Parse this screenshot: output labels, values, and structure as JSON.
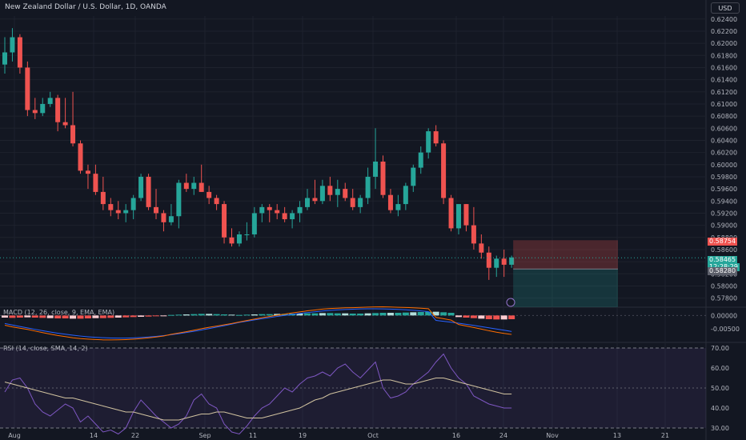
{
  "header": {
    "title": "New Zealand Dollar / U.S. Dollar, 1D, OANDA",
    "currency_button": "USD"
  },
  "indicators": {
    "macd_label": "MACD (12, 26, close, 9, EMA, EMA)",
    "rsi_label": "RSI (14, close, SMA, 14, 2)"
  },
  "price_labels": {
    "stop": "0.58754",
    "last": "0.58465",
    "countdown": "12:28:29",
    "target": "0.58280",
    "macd_zero": "0.00000",
    "macd_low": "-0.00500"
  },
  "colors": {
    "up": "#26a69a",
    "down": "#ef5350",
    "bg": "#131722",
    "grid": "#1e222d",
    "text": "#b2b5be",
    "rsi_line": "#7e57c2",
    "rsi_ma": "#d1c3a0"
  },
  "chart_data": {
    "type": "candlestick",
    "title": "New Zealand Dollar / U.S. Dollar, 1D, OANDA",
    "price_axis": {
      "ticks": [
        "0.62400",
        "0.62200",
        "0.62000",
        "0.61800",
        "0.61600",
        "0.61400",
        "0.61200",
        "0.61000",
        "0.60800",
        "0.60600",
        "0.60400",
        "0.60200",
        "0.60000",
        "0.59800",
        "0.59600",
        "0.59400",
        "0.59200",
        "0.59000",
        "0.58800",
        "0.58600",
        "0.58400",
        "0.58200",
        "0.58000",
        "0.57800"
      ],
      "range": [
        0.5765,
        0.6245
      ]
    },
    "time_axis": [
      "Aug",
      "14",
      "22",
      "Sep",
      "11",
      "19",
      "Oct",
      "16",
      "24",
      "Nov",
      "13",
      "21"
    ],
    "candles": [
      [
        0.6165,
        0.621,
        0.615,
        0.6185
      ],
      [
        0.6185,
        0.6225,
        0.617,
        0.621
      ],
      [
        0.621,
        0.6215,
        0.615,
        0.616
      ],
      [
        0.616,
        0.617,
        0.608,
        0.609
      ],
      [
        0.609,
        0.611,
        0.6075,
        0.6085
      ],
      [
        0.6085,
        0.611,
        0.608,
        0.61
      ],
      [
        0.61,
        0.612,
        0.6095,
        0.611
      ],
      [
        0.611,
        0.6115,
        0.6055,
        0.607
      ],
      [
        0.607,
        0.611,
        0.606,
        0.6065
      ],
      [
        0.6065,
        0.612,
        0.603,
        0.6035
      ],
      [
        0.6035,
        0.604,
        0.5985,
        0.599
      ],
      [
        0.599,
        0.6,
        0.596,
        0.5985
      ],
      [
        0.5985,
        0.6,
        0.595,
        0.5955
      ],
      [
        0.5955,
        0.598,
        0.5925,
        0.5935
      ],
      [
        0.5935,
        0.5945,
        0.5915,
        0.5925
      ],
      [
        0.5925,
        0.594,
        0.591,
        0.592
      ],
      [
        0.592,
        0.5935,
        0.5905,
        0.5925
      ],
      [
        0.5925,
        0.595,
        0.591,
        0.5945
      ],
      [
        0.5945,
        0.5985,
        0.594,
        0.598
      ],
      [
        0.598,
        0.5985,
        0.5925,
        0.593
      ],
      [
        0.593,
        0.596,
        0.591,
        0.592
      ],
      [
        0.592,
        0.5925,
        0.589,
        0.5905
      ],
      [
        0.5905,
        0.5935,
        0.59,
        0.5915
      ],
      [
        0.5915,
        0.5975,
        0.5895,
        0.597
      ],
      [
        0.597,
        0.5985,
        0.5955,
        0.596
      ],
      [
        0.596,
        0.598,
        0.595,
        0.597
      ],
      [
        0.597,
        0.6,
        0.5955,
        0.5955
      ],
      [
        0.5955,
        0.5965,
        0.5935,
        0.5945
      ],
      [
        0.5945,
        0.595,
        0.5925,
        0.5935
      ],
      [
        0.5935,
        0.594,
        0.587,
        0.588
      ],
      [
        0.588,
        0.5895,
        0.5865,
        0.587
      ],
      [
        0.587,
        0.589,
        0.5865,
        0.5885
      ],
      [
        0.5885,
        0.5905,
        0.5875,
        0.5885
      ],
      [
        0.5885,
        0.593,
        0.588,
        0.592
      ],
      [
        0.592,
        0.5935,
        0.5905,
        0.593
      ],
      [
        0.593,
        0.5935,
        0.5905,
        0.5925
      ],
      [
        0.5925,
        0.5935,
        0.591,
        0.592
      ],
      [
        0.592,
        0.593,
        0.5905,
        0.591
      ],
      [
        0.591,
        0.5925,
        0.5895,
        0.592
      ],
      [
        0.592,
        0.594,
        0.5905,
        0.593
      ],
      [
        0.593,
        0.596,
        0.5925,
        0.5945
      ],
      [
        0.5945,
        0.5975,
        0.5935,
        0.594
      ],
      [
        0.594,
        0.5975,
        0.5935,
        0.5965
      ],
      [
        0.5965,
        0.598,
        0.594,
        0.595
      ],
      [
        0.595,
        0.5975,
        0.593,
        0.596
      ],
      [
        0.596,
        0.597,
        0.594,
        0.5945
      ],
      [
        0.5945,
        0.596,
        0.5925,
        0.593
      ],
      [
        0.593,
        0.595,
        0.592,
        0.5945
      ],
      [
        0.5945,
        0.5995,
        0.5935,
        0.598
      ],
      [
        0.598,
        0.606,
        0.596,
        0.6005
      ],
      [
        0.6005,
        0.6015,
        0.5945,
        0.595
      ],
      [
        0.595,
        0.596,
        0.592,
        0.5925
      ],
      [
        0.5925,
        0.595,
        0.5915,
        0.5935
      ],
      [
        0.5935,
        0.597,
        0.5925,
        0.5965
      ],
      [
        0.5965,
        0.6,
        0.5955,
        0.5995
      ],
      [
        0.5995,
        0.603,
        0.5985,
        0.602
      ],
      [
        0.602,
        0.606,
        0.601,
        0.6055
      ],
      [
        0.6055,
        0.6065,
        0.603,
        0.6035
      ],
      [
        0.6035,
        0.604,
        0.5935,
        0.5945
      ],
      [
        0.5945,
        0.595,
        0.589,
        0.5895
      ],
      [
        0.5895,
        0.5935,
        0.5885,
        0.5935
      ],
      [
        0.5935,
        0.5935,
        0.589,
        0.59
      ],
      [
        0.59,
        0.593,
        0.586,
        0.587
      ],
      [
        0.587,
        0.5885,
        0.5845,
        0.5855
      ],
      [
        0.5855,
        0.5865,
        0.581,
        0.583
      ],
      [
        0.583,
        0.585,
        0.5815,
        0.5845
      ],
      [
        0.5845,
        0.586,
        0.5815,
        0.5835
      ],
      [
        0.5835,
        0.585,
        0.583,
        0.5847
      ]
    ],
    "position": {
      "entry": 0.58465,
      "stop": 0.58754,
      "target": 0.5828,
      "bottom": 0.5765
    },
    "macd": {
      "range": [
        -0.0095,
        0.0025
      ],
      "ticks": [
        "0.00000",
        "-0.00500"
      ]
    },
    "rsi": {
      "range": [
        28,
        72
      ],
      "ticks": [
        "70.00",
        "60.00",
        "50.00",
        "40.00",
        "30.00"
      ],
      "band": [
        30,
        70
      ],
      "values": [
        48,
        54,
        55,
        50,
        42,
        38,
        36,
        39,
        42,
        40,
        33,
        36,
        32,
        28,
        29,
        27,
        30,
        38,
        44,
        40,
        36,
        33,
        30,
        32,
        36,
        44,
        47,
        42,
        40,
        32,
        28,
        27,
        31,
        36,
        40,
        42,
        46,
        50,
        48,
        52,
        55,
        56,
        58,
        56,
        60,
        62,
        58,
        55,
        59,
        63,
        50,
        45,
        46,
        48,
        52,
        55,
        58,
        63,
        67,
        60,
        55,
        52,
        46,
        44,
        42,
        41,
        40,
        40
      ],
      "ma": [
        53,
        52,
        51,
        50,
        49,
        48,
        47,
        46,
        45,
        45,
        44,
        43,
        42,
        41,
        40,
        39,
        38,
        38,
        37,
        36,
        35,
        34,
        34,
        34,
        35,
        36,
        37,
        37,
        38,
        38,
        37,
        36,
        35,
        35,
        35,
        36,
        37,
        38,
        39,
        40,
        42,
        44,
        45,
        47,
        48,
        49,
        50,
        51,
        52,
        53,
        54,
        54,
        53,
        52,
        52,
        53,
        54,
        55,
        55,
        54,
        53,
        52,
        51,
        50,
        49,
        48,
        47,
        47
      ]
    }
  }
}
